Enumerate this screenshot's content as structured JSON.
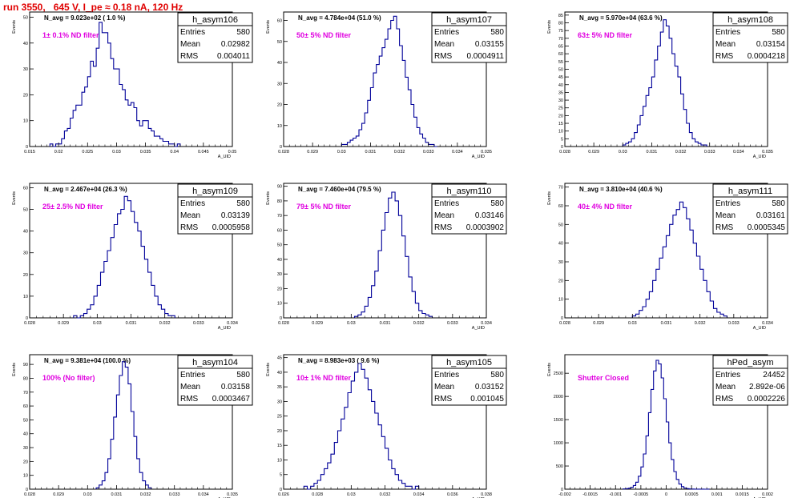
{
  "title": "run 3550,   645 V, I_pe ≈ 0.18 nA, 120 Hz",
  "chart_data": [
    {
      "type": "histogram",
      "name": "h_asym106",
      "navg": "N_avg = 9.023e+02 ( 1.0 %)",
      "filter": "1± 0.1% ND filter",
      "stats": [
        [
          "Entries",
          "580"
        ],
        [
          "Mean",
          "0.02982"
        ],
        [
          "RMS",
          "0.004011"
        ]
      ],
      "ylabel": "Events",
      "xlabel": "A_UID",
      "xlim": [
        0.015,
        0.05
      ],
      "ylim": [
        0,
        52
      ],
      "xticks": [
        0.015,
        0.02,
        0.025,
        0.03,
        0.035,
        0.04,
        0.045,
        0.05
      ],
      "xticklabels": [
        "0.015",
        "0.02",
        "0.025",
        "0.03",
        "0.035",
        "0.04",
        "0.045",
        "0.05"
      ],
      "yticks": [
        0,
        10,
        20,
        30,
        40,
        50
      ],
      "bins": {
        "start": 0.0185,
        "width": 0.0005,
        "counts": [
          1,
          0,
          1,
          1,
          3,
          6,
          7,
          11,
          14,
          16,
          16,
          21,
          23,
          27,
          33,
          31,
          38,
          48,
          44,
          44,
          40,
          34,
          30,
          30,
          24,
          22,
          18,
          16,
          17,
          15,
          10,
          8,
          10,
          10,
          7,
          6,
          4,
          4,
          3,
          2,
          2,
          1,
          1,
          0,
          1
        ]
      }
    },
    {
      "type": "histogram",
      "name": "h_asym107",
      "navg": "N_avg = 4.784e+04 (51.0 %)",
      "filter": "50± 5% ND filter",
      "stats": [
        [
          "Entries",
          "580"
        ],
        [
          "Mean",
          "0.03155"
        ],
        [
          "RMS",
          "0.0004911"
        ]
      ],
      "ylabel": "Events",
      "xlabel": "A_UID",
      "xlim": [
        0.028,
        0.035
      ],
      "ylim": [
        0,
        64
      ],
      "xticks": [
        0.028,
        0.029,
        0.03,
        0.031,
        0.032,
        0.033,
        0.034,
        0.035
      ],
      "xticklabels": [
        "0.028",
        "0.029",
        "0.03",
        "0.031",
        "0.032",
        "0.033",
        "0.034",
        "0.035"
      ],
      "yticks": [
        0,
        10,
        20,
        30,
        40,
        50,
        60
      ],
      "bins": {
        "start": 0.03,
        "width": 0.0001,
        "counts": [
          1,
          1,
          2,
          3,
          4,
          5,
          8,
          11,
          16,
          22,
          28,
          35,
          39,
          43,
          47,
          51,
          56,
          60,
          62,
          56,
          48,
          41,
          33,
          27,
          20,
          14,
          9,
          6,
          4,
          2,
          1,
          1,
          0
        ]
      }
    },
    {
      "type": "histogram",
      "name": "h_asym108",
      "navg": "N_avg = 5.970e+04 (63.6 %)",
      "filter": "63± 5% ND filter",
      "stats": [
        [
          "Entries",
          "580"
        ],
        [
          "Mean",
          "0.03154"
        ],
        [
          "RMS",
          "0.0004218"
        ]
      ],
      "ylabel": "Events",
      "xlabel": "A_UID",
      "xlim": [
        0.028,
        0.035
      ],
      "ylim": [
        0,
        87
      ],
      "xticks": [
        0.028,
        0.029,
        0.03,
        0.031,
        0.032,
        0.033,
        0.034,
        0.035
      ],
      "xticklabels": [
        "0.028",
        "0.029",
        "0.03",
        "0.031",
        "0.032",
        "0.033",
        "0.034",
        "0.035"
      ],
      "yticks": [
        0,
        5,
        10,
        15,
        20,
        25,
        30,
        35,
        40,
        45,
        50,
        55,
        60,
        65,
        70,
        75,
        80,
        85
      ],
      "bins": {
        "start": 0.03,
        "width": 0.0001,
        "counts": [
          1,
          2,
          3,
          5,
          9,
          14,
          20,
          26,
          33,
          38,
          45,
          56,
          65,
          74,
          82,
          78,
          70,
          60,
          52,
          45,
          34,
          24,
          15,
          9,
          5,
          3,
          2,
          1,
          1
        ]
      }
    },
    {
      "type": "histogram",
      "name": "h_asym109",
      "navg": "N_avg = 2.467e+04 (26.3 %)",
      "filter": "25± 2.5% ND filter",
      "stats": [
        [
          "Entries",
          "580"
        ],
        [
          "Mean",
          "0.03139"
        ],
        [
          "RMS",
          "0.0005958"
        ]
      ],
      "ylabel": "Events",
      "xlabel": "A_UID",
      "xlim": [
        0.028,
        0.034
      ],
      "ylim": [
        0,
        62
      ],
      "xticks": [
        0.028,
        0.029,
        0.03,
        0.031,
        0.032,
        0.033,
        0.034
      ],
      "xticklabels": [
        "0.028",
        "0.029",
        "0.03",
        "0.031",
        "0.032",
        "0.033",
        "0.034"
      ],
      "yticks": [
        0,
        10,
        20,
        30,
        40,
        50,
        60
      ],
      "bins": {
        "start": 0.0293,
        "width": 0.0001,
        "counts": [
          1,
          0,
          1,
          2,
          4,
          6,
          10,
          15,
          21,
          26,
          31,
          37,
          43,
          48,
          50,
          56,
          54,
          49,
          44,
          40,
          33,
          27,
          21,
          15,
          10,
          6,
          4,
          2,
          1,
          1
        ]
      }
    },
    {
      "type": "histogram",
      "name": "h_asym110",
      "navg": "N_avg = 7.460e+04 (79.5 %)",
      "filter": "79± 5% ND filter",
      "stats": [
        [
          "Entries",
          "580"
        ],
        [
          "Mean",
          "0.03146"
        ],
        [
          "RMS",
          "0.0003902"
        ]
      ],
      "ylabel": "Events",
      "xlabel": "A_UID",
      "xlim": [
        0.028,
        0.034
      ],
      "ylim": [
        0,
        92
      ],
      "xticks": [
        0.028,
        0.029,
        0.03,
        0.031,
        0.032,
        0.033,
        0.034
      ],
      "xticklabels": [
        "0.028",
        "0.029",
        "0.03",
        "0.031",
        "0.032",
        "0.033",
        "0.034"
      ],
      "yticks": [
        0,
        10,
        20,
        30,
        40,
        50,
        60,
        70,
        80,
        90
      ],
      "bins": {
        "start": 0.0301,
        "width": 0.0001,
        "counts": [
          1,
          2,
          4,
          8,
          14,
          22,
          32,
          46,
          60,
          72,
          82,
          86,
          80,
          70,
          56,
          42,
          28,
          18,
          10,
          5,
          3,
          2,
          1
        ]
      }
    },
    {
      "type": "histogram",
      "name": "h_asym111",
      "navg": "N_avg = 3.810e+04 (40.6 %)",
      "filter": "40± 4% ND filter",
      "stats": [
        [
          "Entries",
          "580"
        ],
        [
          "Mean",
          "0.03161"
        ],
        [
          "RMS",
          "0.0005345"
        ]
      ],
      "ylabel": "Events",
      "xlabel": "A_UID",
      "xlim": [
        0.028,
        0.034
      ],
      "ylim": [
        0,
        72
      ],
      "xticks": [
        0.028,
        0.029,
        0.03,
        0.031,
        0.032,
        0.033,
        0.034
      ],
      "xticklabels": [
        "0.028",
        "0.029",
        "0.03",
        "0.031",
        "0.032",
        "0.033",
        "0.034"
      ],
      "yticks": [
        0,
        10,
        20,
        30,
        40,
        50,
        60,
        70
      ],
      "bins": {
        "start": 0.03,
        "width": 0.0001,
        "counts": [
          1,
          2,
          4,
          6,
          10,
          14,
          20,
          26,
          32,
          38,
          44,
          50,
          55,
          58,
          62,
          59,
          53,
          47,
          40,
          33,
          26,
          20,
          14,
          9,
          5,
          3,
          2,
          1
        ]
      }
    },
    {
      "type": "histogram",
      "name": "h_asym104",
      "navg": "N_avg = 9.381e+04 (100.0 %)",
      "filter": "100% (No filter)",
      "stats": [
        [
          "Entries",
          "580"
        ],
        [
          "Mean",
          "0.03158"
        ],
        [
          "RMS",
          "0.0003467"
        ]
      ],
      "ylabel": "Events",
      "xlabel": "A_UID",
      "xlim": [
        0.028,
        0.035
      ],
      "ylim": [
        0,
        97
      ],
      "xticks": [
        0.028,
        0.029,
        0.03,
        0.031,
        0.032,
        0.033,
        0.034,
        0.035
      ],
      "xticklabels": [
        "0.028",
        "0.029",
        "0.03",
        "0.031",
        "0.032",
        "0.033",
        "0.034",
        "0.035"
      ],
      "yticks": [
        0,
        10,
        20,
        30,
        40,
        50,
        60,
        70,
        80,
        90
      ],
      "bins": {
        "start": 0.0303,
        "width": 0.0001,
        "counts": [
          1,
          3,
          6,
          12,
          22,
          36,
          52,
          68,
          82,
          92,
          88,
          76,
          56,
          38,
          22,
          12,
          6,
          3,
          1
        ]
      }
    },
    {
      "type": "histogram",
      "name": "h_asym105",
      "navg": "N_avg = 8.983e+03 ( 9.6 %)",
      "filter": "10± 1% ND filter",
      "stats": [
        [
          "Entries",
          "580"
        ],
        [
          "Mean",
          "0.03152"
        ],
        [
          "RMS",
          "0.001045"
        ]
      ],
      "ylabel": "Events",
      "xlabel": "A_UID",
      "xlim": [
        0.026,
        0.038
      ],
      "ylim": [
        0,
        46
      ],
      "xticks": [
        0.026,
        0.028,
        0.03,
        0.032,
        0.034,
        0.036,
        0.038
      ],
      "xticklabels": [
        "0.026",
        "0.028",
        "0.03",
        "0.032",
        "0.034",
        "0.036",
        "0.038"
      ],
      "yticks": [
        0,
        5,
        10,
        15,
        20,
        25,
        30,
        35,
        40,
        45
      ],
      "bins": {
        "start": 0.0272,
        "width": 0.0002,
        "counts": [
          1,
          0,
          1,
          2,
          3,
          5,
          7,
          9,
          12,
          16,
          20,
          24,
          28,
          33,
          37,
          40,
          43,
          41,
          38,
          34,
          30,
          26,
          22,
          18,
          14,
          10,
          7,
          5,
          3,
          2,
          1,
          1,
          0,
          1
        ]
      }
    },
    {
      "type": "histogram",
      "name": "hPed_asym",
      "navg": "",
      "filter": "Shutter Closed",
      "stats": [
        [
          "Entries",
          "24452"
        ],
        [
          "Mean",
          "2.892e-06"
        ],
        [
          "RMS",
          "0.0002226"
        ]
      ],
      "ylabel": "Events",
      "xlabel": "A_UID",
      "xlim": [
        -0.002,
        0.002
      ],
      "ylim": [
        0,
        2900
      ],
      "xticks": [
        -0.002,
        -0.0015,
        -0.001,
        -0.0005,
        0,
        0.0005,
        0.001,
        0.0015,
        0.002
      ],
      "xticklabels": [
        "-0.002",
        "-0.0015",
        "-0.001",
        "-0.0005",
        "0",
        "0.0005",
        "0.001",
        "0.0015",
        "0.002"
      ],
      "yticks": [
        0,
        500,
        1000,
        1500,
        2000,
        2500
      ],
      "bins": {
        "start": -0.00085,
        "width": 5e-05,
        "counts": [
          5,
          10,
          20,
          40,
          80,
          150,
          280,
          480,
          760,
          1150,
          1650,
          2150,
          2550,
          2780,
          2700,
          2400,
          1950,
          1450,
          1000,
          640,
          380,
          210,
          110,
          55,
          25,
          12,
          6,
          3,
          2,
          1,
          1,
          1,
          0,
          1
        ]
      }
    }
  ]
}
